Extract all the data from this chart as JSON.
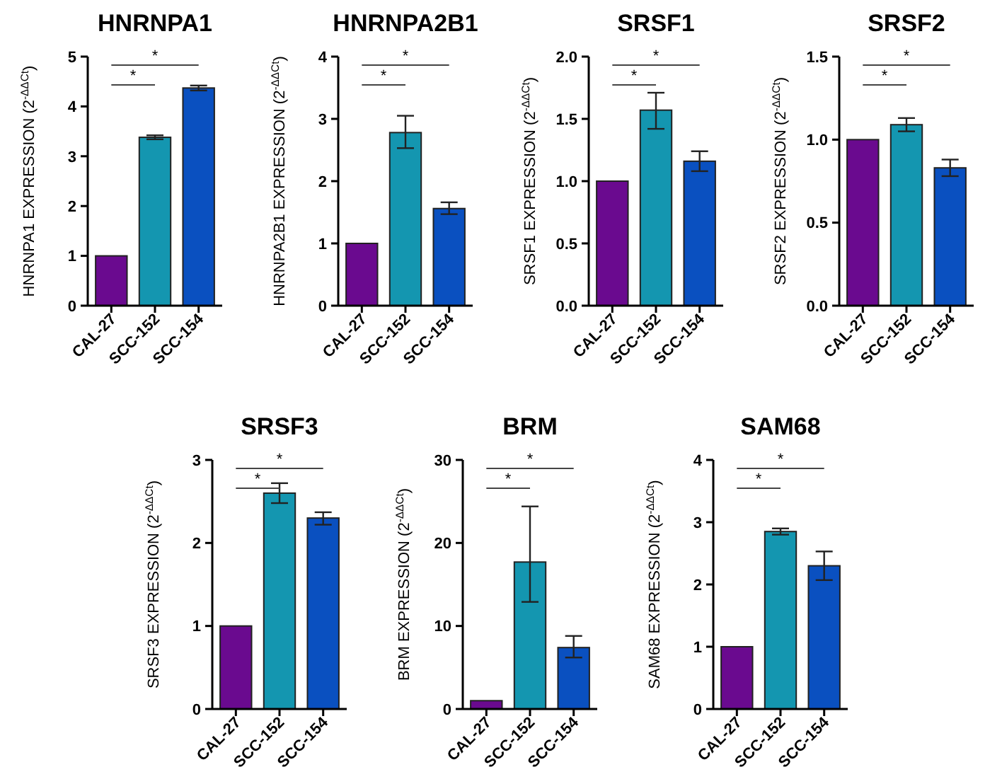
{
  "chart_data": [
    {
      "type": "bar",
      "title": "HNRNPA1",
      "ylabel": "HNRNPA1 EXPRESSION (2$^{-ΔΔCt}$)",
      "categories": [
        "CAL-27",
        "SCC-152",
        "SCC-154"
      ],
      "values": [
        1,
        3.38,
        4.37
      ],
      "colors": [
        "#6a0a8f",
        "#1496b0",
        "#0a50c0"
      ],
      "errors": [
        null,
        0.04,
        0.05
      ],
      "ylim": [
        0,
        5
      ],
      "yticks": [
        0,
        1,
        2,
        3,
        4,
        5
      ],
      "annotations": [
        "*",
        "*"
      ]
    },
    {
      "type": "bar",
      "title": "HNRNPA2B1",
      "ylabel": "HNRNPA2B1 EXPRESSION (2$^{-ΔΔCt}$)",
      "categories": [
        "CAL-27",
        "SCC-152",
        "SCC-154"
      ],
      "values": [
        1,
        2.78,
        1.56
      ],
      "colors": [
        "#6a0a8f",
        "#1496b0",
        "#0a50c0"
      ],
      "errors": [
        null,
        [
          2.53,
          3.05
        ],
        [
          1.47,
          1.66
        ]
      ],
      "ylim": [
        0,
        4
      ],
      "yticks": [
        0,
        1,
        2,
        3,
        4
      ],
      "annotations": [
        "*",
        "*"
      ]
    },
    {
      "type": "bar",
      "title": "SRSF1",
      "ylabel": "SRSF1 EXPRESSION (2$^{-ΔΔCt}$)",
      "categories": [
        "CAL-27",
        "SCC-152",
        "SCC-154"
      ],
      "values": [
        1,
        1.57,
        1.16
      ],
      "colors": [
        "#6a0a8f",
        "#1496b0",
        "#0a50c0"
      ],
      "errors": [
        null,
        [
          1.42,
          1.71
        ],
        [
          1.08,
          1.24
        ]
      ],
      "ylim": [
        0,
        2
      ],
      "yticks": [
        {
          "value": 0,
          "label": "0.0"
        },
        {
          "value": 0.5,
          "label": "0.5"
        },
        {
          "value": 1,
          "label": "1.0"
        },
        {
          "value": 1.5,
          "label": "1.5"
        },
        {
          "value": 2,
          "label": "2.0"
        }
      ],
      "annotations": [
        "*",
        "*"
      ]
    },
    {
      "type": "bar",
      "title": "SRSF2",
      "ylabel": "SRSF2 EXPRESSION (2$^{-ΔΔCt}$)",
      "categories": [
        "CAL-27",
        "SCC-152",
        "SCC-154"
      ],
      "values": [
        1,
        1.09,
        0.83
      ],
      "colors": [
        "#6a0a8f",
        "#1496b0",
        "#0a50c0"
      ],
      "errors": [
        null,
        [
          1.05,
          1.13
        ],
        [
          0.78,
          0.88
        ]
      ],
      "ylim": [
        0,
        1.5
      ],
      "yticks": [
        {
          "value": 0,
          "label": "0.0"
        },
        {
          "value": 0.5,
          "label": "0.5"
        },
        {
          "value": 1,
          "label": "1.0"
        },
        {
          "value": 1.5,
          "label": "1.5"
        }
      ],
      "annotations": [
        "*",
        "*"
      ]
    },
    {
      "type": "bar",
      "title": "SRSF3",
      "ylabel": "SRSF3 EXPRESSION (2$^{-ΔΔCt}$)",
      "categories": [
        "CAL-27",
        "SCC-152",
        "SCC-154"
      ],
      "values": [
        1,
        2.6,
        2.3
      ],
      "colors": [
        "#6a0a8f",
        "#1496b0",
        "#0a50c0"
      ],
      "errors": [
        null,
        [
          2.48,
          2.72
        ],
        [
          2.22,
          2.37
        ]
      ],
      "ylim": [
        0,
        3
      ],
      "yticks": [
        0,
        1,
        2,
        3
      ],
      "annotations": [
        "*",
        "*"
      ]
    },
    {
      "type": "bar",
      "title": "BRM",
      "ylabel": "BRM EXPRESSION (2$^{-ΔΔCt}$)",
      "categories": [
        "CAL-27",
        "SCC-152",
        "SCC-154"
      ],
      "values": [
        1,
        17.7,
        7.4
      ],
      "colors": [
        "#6a0a8f",
        "#1496b0",
        "#0a50c0"
      ],
      "errors": [
        null,
        [
          12.9,
          24.4
        ],
        [
          6.2,
          8.8
        ]
      ],
      "ylim": [
        0,
        30
      ],
      "yticks": [
        0,
        10,
        20,
        30
      ],
      "annotations": [
        "*",
        "*"
      ]
    },
    {
      "type": "bar",
      "title": "SAM68",
      "ylabel": "SAM68 EXPRESSION (2$^{-ΔΔCt}$)",
      "categories": [
        "CAL-27",
        "SCC-152",
        "SCC-154"
      ],
      "values": [
        1,
        2.85,
        2.3
      ],
      "colors": [
        "#6a0a8f",
        "#1496b0",
        "#0a50c0"
      ],
      "errors": [
        null,
        [
          2.8,
          2.9
        ],
        [
          2.07,
          2.53
        ]
      ],
      "ylim": [
        0,
        4
      ],
      "yticks": [
        0,
        1,
        2,
        3,
        4
      ],
      "annotations": [
        "*",
        "*"
      ]
    }
  ]
}
